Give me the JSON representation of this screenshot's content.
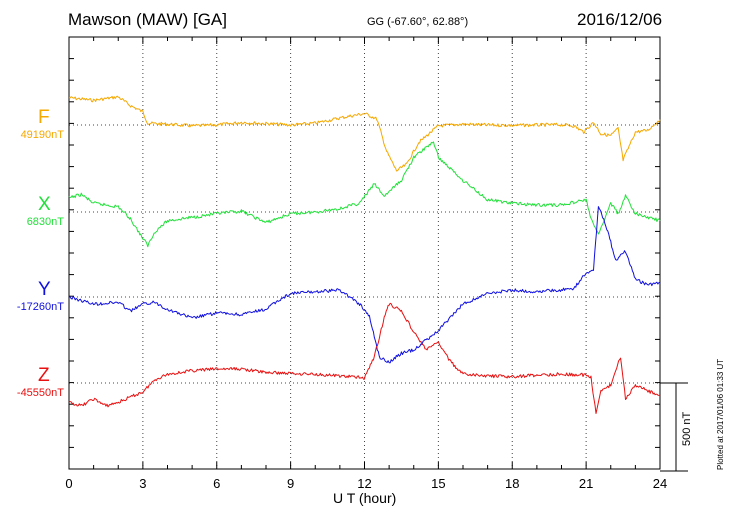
{
  "header": {
    "station": "Mawson (MAW)  [GA]",
    "geo_coords": "GG (-67.60°,  62.88°)",
    "date": "2016/12/06"
  },
  "footer": {
    "plotted_note": "Plotted at 2017/01/06 01:33 UT"
  },
  "chart_data": {
    "type": "line",
    "xlabel": "U T (hour)",
    "xlim": [
      0,
      24
    ],
    "xticks": [
      0,
      3,
      6,
      9,
      12,
      15,
      18,
      21,
      24
    ],
    "grid": true,
    "scale_bar": {
      "label": "500 nT",
      "value_nT": 500
    },
    "series": [
      {
        "name": "F",
        "baseline_label": "49190nT",
        "baseline_nT": 49190,
        "color": "#f5a800",
        "x": [
          0,
          1,
          2,
          2.5,
          3,
          3.2,
          4,
          5,
          6,
          7,
          8,
          9,
          10,
          11,
          12,
          12.5,
          12.9,
          13.3,
          13.7,
          14.2,
          14.7,
          15,
          16,
          17,
          18,
          19,
          20,
          20.5,
          20.9,
          21.3,
          21.6,
          22,
          22.3,
          22.5,
          23,
          23.5,
          24
        ],
        "y": [
          49345,
          49330,
          49350,
          49300,
          49265,
          49200,
          49195,
          49185,
          49190,
          49205,
          49198,
          49190,
          49200,
          49230,
          49255,
          49225,
          49040,
          48930,
          48965,
          49090,
          49150,
          49185,
          49195,
          49190,
          49188,
          49190,
          49192,
          49185,
          49150,
          49205,
          49140,
          49130,
          49170,
          48990,
          49150,
          49160,
          49220
        ]
      },
      {
        "name": "X",
        "baseline_label": "6830nT",
        "baseline_nT": 6830,
        "color": "#22e03a",
        "x": [
          0,
          0.5,
          1,
          2,
          2.5,
          3,
          3.2,
          3.5,
          4,
          5,
          6,
          7,
          8,
          9,
          10,
          11,
          11.8,
          12.4,
          12.8,
          13.5,
          14,
          14.8,
          15,
          16,
          17,
          18,
          19,
          20,
          21,
          21.2,
          21.5,
          22,
          22.3,
          22.6,
          23,
          24
        ],
        "y": [
          6910,
          6930,
          6880,
          6860,
          6790,
          6680,
          6640,
          6720,
          6780,
          6800,
          6820,
          6835,
          6770,
          6820,
          6830,
          6850,
          6880,
          6990,
          6920,
          7010,
          7140,
          7230,
          7140,
          7010,
          6900,
          6880,
          6870,
          6870,
          6900,
          6790,
          6700,
          6880,
          6820,
          6920,
          6820,
          6780
        ]
      },
      {
        "name": "Y",
        "baseline_label": "-17260nT",
        "baseline_nT": -17260,
        "color": "#1010e0",
        "x": [
          0,
          1,
          2,
          2.5,
          3,
          3.5,
          4,
          5,
          6,
          7,
          8,
          8.5,
          9,
          10,
          11,
          11.8,
          12.2,
          12.6,
          13,
          13.5,
          14,
          15,
          16,
          17,
          18,
          19,
          20,
          20.5,
          20.9,
          21.3,
          21.5,
          21.8,
          22.2,
          22.6,
          23,
          23.5,
          24
        ],
        "y": [
          -17260,
          -17300,
          -17290,
          -17340,
          -17300,
          -17290,
          -17330,
          -17380,
          -17350,
          -17360,
          -17330,
          -17280,
          -17240,
          -17230,
          -17220,
          -17300,
          -17370,
          -17600,
          -17630,
          -17580,
          -17560,
          -17450,
          -17300,
          -17240,
          -17220,
          -17230,
          -17220,
          -17210,
          -17140,
          -17100,
          -16740,
          -16850,
          -17050,
          -17000,
          -17160,
          -17190,
          -17180
        ]
      },
      {
        "name": "Z",
        "baseline_label": "-45550nT",
        "baseline_nT": -45550,
        "color": "#e81010",
        "x": [
          0,
          0.5,
          1,
          1.5,
          2,
          3,
          3.5,
          4,
          5,
          6,
          7,
          8,
          9,
          10,
          11,
          12,
          12.4,
          12.8,
          13,
          13.5,
          14,
          14.5,
          15,
          15.5,
          16,
          17,
          18,
          19,
          20,
          21,
          21.2,
          21.4,
          21.6,
          22,
          22.4,
          22.6,
          23,
          23.6,
          24
        ],
        "y": [
          -45660,
          -45680,
          -45640,
          -45680,
          -45660,
          -45600,
          -45530,
          -45500,
          -45480,
          -45470,
          -45470,
          -45490,
          -45495,
          -45500,
          -45510,
          -45520,
          -45400,
          -45180,
          -45100,
          -45140,
          -45260,
          -45360,
          -45320,
          -45430,
          -45500,
          -45510,
          -45515,
          -45505,
          -45500,
          -45505,
          -45520,
          -45720,
          -45600,
          -45560,
          -45400,
          -45640,
          -45560,
          -45600,
          -45620
        ]
      }
    ]
  }
}
